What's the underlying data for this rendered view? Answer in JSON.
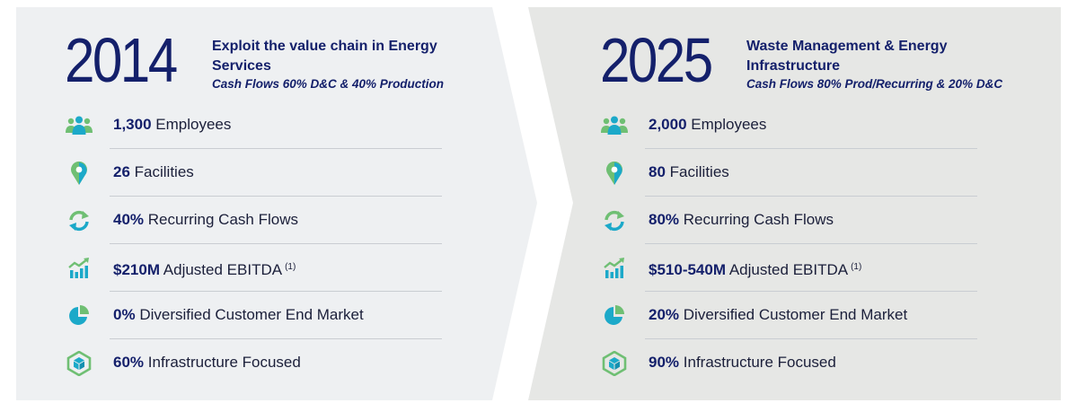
{
  "colors": {
    "navy": "#14206b",
    "teal": "#1ca9c9",
    "green": "#6fbf73",
    "panel_left": "#eef0f2",
    "panel_right": "#e6e7e5"
  },
  "left": {
    "year": "2014",
    "title": "Exploit the value chain in Energy Services",
    "subtitle": "Cash Flows 60% D&C & 40% Production",
    "rows": [
      {
        "icon": "people-icon",
        "value": "1,300",
        "label": "Employees",
        "note": ""
      },
      {
        "icon": "location-pin-icon",
        "value": "26",
        "label": "Facilities",
        "note": ""
      },
      {
        "icon": "recycle-arrows-icon",
        "value": "40%",
        "label": "Recurring Cash Flows",
        "note": ""
      },
      {
        "icon": "growth-chart-icon",
        "value": "$210M",
        "label": "Adjusted EBITDA",
        "note": "(1)"
      },
      {
        "icon": "pie-chart-icon",
        "value": "0%",
        "label": "Diversified Customer End Market",
        "note": ""
      },
      {
        "icon": "infrastructure-cube-icon",
        "value": "60%",
        "label": "Infrastructure Focused",
        "note": ""
      }
    ]
  },
  "right": {
    "year": "2025",
    "title": "Waste Management & Energy Infrastructure",
    "subtitle": "Cash Flows 80% Prod/Recurring & 20% D&C",
    "rows": [
      {
        "icon": "people-icon",
        "value": "2,000",
        "label": "Employees",
        "note": ""
      },
      {
        "icon": "location-pin-icon",
        "value": "80",
        "label": "Facilities",
        "note": ""
      },
      {
        "icon": "recycle-arrows-icon",
        "value": "80%",
        "label": "Recurring Cash Flows",
        "note": ""
      },
      {
        "icon": "growth-chart-icon",
        "value": "$510-540M",
        "label": "Adjusted EBITDA",
        "note": "(1)"
      },
      {
        "icon": "pie-chart-icon",
        "value": "20%",
        "label": "Diversified Customer End Market",
        "note": ""
      },
      {
        "icon": "infrastructure-cube-icon",
        "value": "90%",
        "label": "Infrastructure Focused",
        "note": ""
      }
    ]
  }
}
